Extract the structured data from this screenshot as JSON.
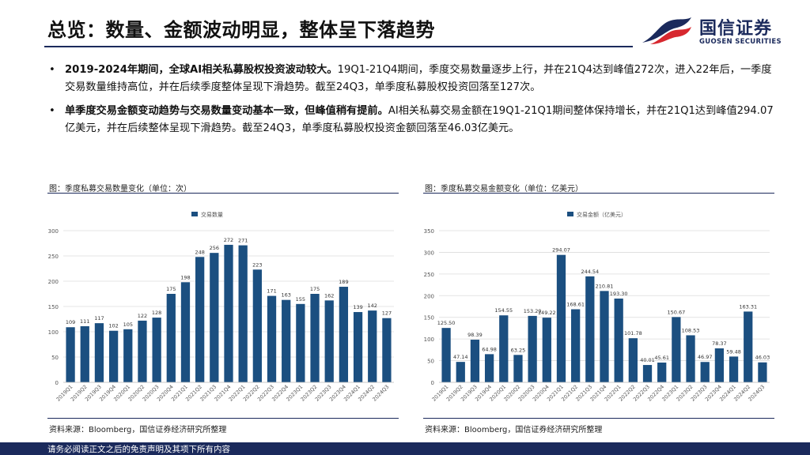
{
  "header": {
    "title": "总览：数量、金额波动明显，整体呈下落趋势"
  },
  "logo": {
    "name_cn": "国信证券",
    "name_en": "GUOSEN SECURITIES",
    "colors": {
      "red": "#d7282f",
      "navy": "#1b2a5c"
    }
  },
  "bullets": [
    {
      "marker": "•",
      "bold": "2019-2024年期间，全球AI相关私募股权投资波动较大。",
      "text": "19Q1-21Q4期间，季度交易数量逐步上行，并在21Q4达到峰值272次，进入22年后，一季度交易数量维持高位，并在后续季度整体呈现下滑趋势。截至24Q3，单季度私募股权投资回落至127次。"
    },
    {
      "marker": "•",
      "bold": "单季度交易金额变动趋势与交易数量变动基本一致，但峰值稍有提前。",
      "text": "AI相关私募交易金额在19Q1-21Q1期间整体保持增长，并在21Q1达到峰值294.07亿美元，并在后续整体呈现下滑趋势。截至24Q3，单季度私募股权投资金额回落至46.03亿美元。"
    }
  ],
  "left_panel": {
    "title": "图：季度私募交易数量变化（单位：次）",
    "source": "资料来源：Bloomberg，国信证券经济研究所整理"
  },
  "right_panel": {
    "title": "图：季度私募交易金额变化（单位：亿美元）",
    "source": "资料来源：Bloomberg，国信证券经济研究所整理"
  },
  "footer": {
    "text": "请务必阅读正文之后的免责声明及其项下所有内容"
  },
  "chart_data": [
    {
      "type": "bar",
      "title": "",
      "legend": [
        "交易数量"
      ],
      "legend_position": "top",
      "bar_color": "#1b4f80",
      "categories": [
        "2019Q1",
        "2019Q2",
        "2019Q3",
        "2019Q4",
        "2020Q1",
        "2020Q2",
        "2020Q3",
        "2020Q4",
        "2021Q1",
        "2021Q2",
        "2021Q3",
        "2021Q4",
        "2022Q1",
        "2022Q2",
        "2022Q3",
        "2022Q4",
        "2023Q1",
        "2023Q2",
        "2023Q3",
        "2023Q4",
        "2024Q1",
        "2024Q2",
        "2024Q3"
      ],
      "values": [
        109,
        111,
        117,
        102,
        105,
        122,
        128,
        175,
        198,
        248,
        256,
        272,
        271,
        223,
        171,
        163,
        155,
        175,
        162,
        189,
        139,
        142,
        127
      ],
      "data_labels": [
        "109",
        "111",
        "117",
        "102",
        "105",
        "122",
        "128",
        "175",
        "198",
        "248",
        "256",
        "272",
        "271",
        "223",
        "171",
        "163",
        "155",
        "175",
        "162",
        "189",
        "139",
        "142",
        "127"
      ],
      "ylim": [
        0,
        300
      ],
      "yticks": [
        "0",
        "50",
        "100",
        "150",
        "200",
        "250",
        "300"
      ],
      "xlabel": "",
      "ylabel": ""
    },
    {
      "type": "bar",
      "title": "",
      "legend": [
        "交易金额（亿美元）"
      ],
      "legend_position": "top",
      "bar_color": "#1b4f80",
      "categories": [
        "2019Q1",
        "2019Q2",
        "2019Q3",
        "2019Q4",
        "2020Q1",
        "2020Q2",
        "2020Q3",
        "2020Q4",
        "2021Q1",
        "2021Q2",
        "2021Q3",
        "2021Q4",
        "2022Q1",
        "2022Q2",
        "2022Q3",
        "2022Q4",
        "2023Q1",
        "2023Q2",
        "2023Q3",
        "2023Q4",
        "2024Q1",
        "2024Q2",
        "2024Q3"
      ],
      "values": [
        125.5,
        47.14,
        98.39,
        64.98,
        154.55,
        63.25,
        153.29,
        149.22,
        294.07,
        168.61,
        244.54,
        210.81,
        193.3,
        101.78,
        40.01,
        45.61,
        150.67,
        108.53,
        46.97,
        78.37,
        59.48,
        163.31,
        46.03
      ],
      "data_labels": [
        "125.50",
        "47.14",
        "98.39",
        "64.98",
        "154.55",
        "63.25",
        "153.29",
        "149.22",
        "294.07",
        "168.61",
        "244.54",
        "210.81",
        "193.30",
        "101.78",
        "40.01",
        "45.61",
        "150.67",
        "108.53",
        "46.97",
        "78.37",
        "59.48",
        "163.31",
        "46.03"
      ],
      "ylim": [
        0,
        350
      ],
      "yticks": [
        "0",
        "50",
        "100",
        "150",
        "200",
        "250",
        "300",
        "350"
      ],
      "xlabel": "",
      "ylabel": ""
    }
  ]
}
